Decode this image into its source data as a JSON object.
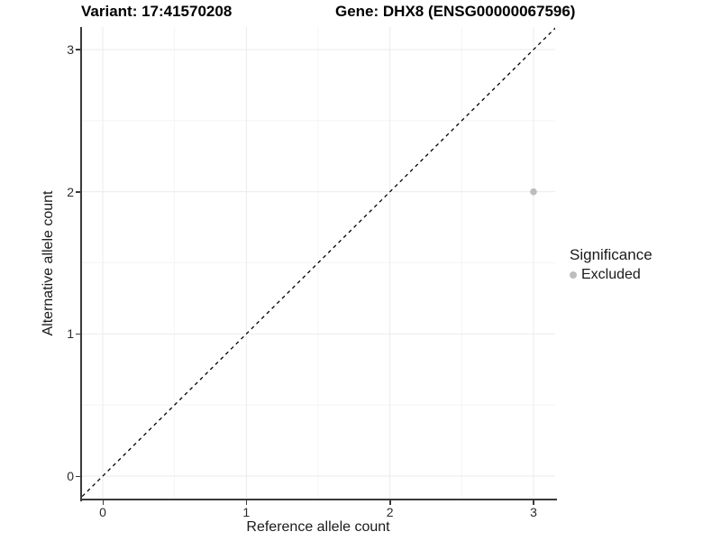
{
  "figure": {
    "title_left": "Variant: 17:41570208",
    "title_right": "Gene: DHX8 (ENSG00000067596)"
  },
  "chart_data": {
    "type": "scatter",
    "title": "Variant: 17:41570208 | Gene: DHX8 (ENSG00000067596)",
    "xlabel": "Reference allele count",
    "ylabel": "Alternative allele count",
    "xlim": [
      -0.15,
      3.16
    ],
    "ylim": [
      -0.17,
      3.16
    ],
    "xticks": [
      "0",
      "1",
      "2",
      "3"
    ],
    "yticks": [
      "0",
      "1",
      "2",
      "3"
    ],
    "x_minor_ticks": [
      0.5,
      1.5,
      2.5
    ],
    "y_minor_ticks": [
      0.5,
      1.5,
      2.5
    ],
    "grid": "major and minor gridlines on white panel",
    "series": [
      {
        "name": "Excluded",
        "marker": "circle",
        "color": "#bdbdbd",
        "points": [
          {
            "x": 3,
            "y": 2
          }
        ]
      }
    ],
    "reference_line": {
      "kind": "identity y=x",
      "style": "dashed",
      "color": "#000000"
    },
    "legend": {
      "title": "Significance",
      "position": "right",
      "items": [
        {
          "label": "Excluded",
          "color": "#bdbdbd",
          "marker": "circle"
        }
      ]
    }
  },
  "colors": {
    "background": "#ffffff",
    "grid_major": "#ebebeb",
    "grid_minor": "#f4f4f4",
    "axis_line": "#3a3a3a",
    "point": "#bdbdbd",
    "text": "#1a1a1a"
  }
}
